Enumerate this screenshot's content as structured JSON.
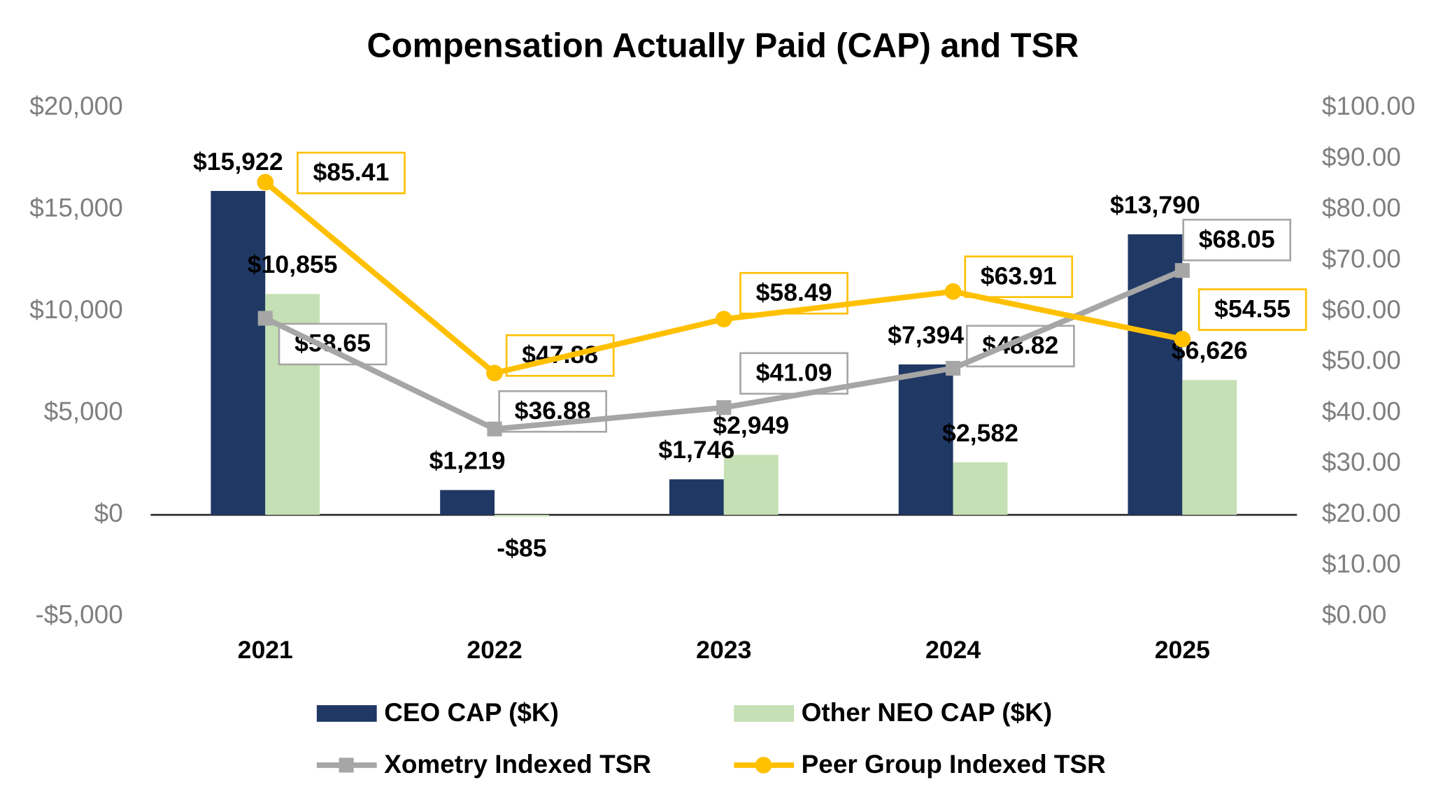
{
  "chart_data": {
    "type": "bar_line_combo",
    "title": "Compensation Actually Paid (CAP) and TSR",
    "categories": [
      "2021",
      "2022",
      "2023",
      "2024",
      "2025"
    ],
    "series": [
      {
        "name": "CEO CAP ($K)",
        "type": "bar",
        "color": "#1f3864",
        "values": [
          15922,
          1219,
          1746,
          7394,
          13790
        ],
        "value_labels": [
          "$15,922",
          "$1,219",
          "$1,746",
          "$7,394",
          "$13,790"
        ]
      },
      {
        "name": "Other NEO CAP ($K)",
        "type": "bar",
        "color": "#c5e0b4",
        "values": [
          10855,
          -85,
          2949,
          2582,
          6626
        ],
        "value_labels": [
          "$10,855",
          "-$85",
          "$2,949",
          "$2,582",
          "$6,626"
        ]
      },
      {
        "name": "Xometry Indexed TSR",
        "type": "line",
        "marker": "square",
        "axis": "y2",
        "color": "#a6a6a6",
        "values": [
          58.65,
          36.88,
          41.09,
          48.82,
          68.05
        ],
        "value_labels": [
          "$58.65",
          "$36.88",
          "$41.09",
          "$48.82",
          "$68.05"
        ]
      },
      {
        "name": "Peer Group Indexed TSR",
        "type": "line",
        "marker": "circle",
        "axis": "y2",
        "color": "#ffc000",
        "values": [
          85.41,
          47.88,
          58.49,
          63.91,
          54.55
        ],
        "value_labels": [
          "$85.41",
          "$47.88",
          "$58.49",
          "$63.91",
          "$54.55"
        ]
      }
    ],
    "ylim": [
      -5000,
      20000
    ],
    "yticks": [
      {
        "value": -5000,
        "label": "-$5,000"
      },
      {
        "value": 0,
        "label": "$0"
      },
      {
        "value": 5000,
        "label": "$5,000"
      },
      {
        "value": 10000,
        "label": "$10,000"
      },
      {
        "value": 15000,
        "label": "$15,000"
      },
      {
        "value": 20000,
        "label": "$20,000"
      }
    ],
    "y2lim": [
      0,
      100
    ],
    "y2ticks": [
      {
        "value": 0,
        "label": "$0.00"
      },
      {
        "value": 10,
        "label": "$10.00"
      },
      {
        "value": 20,
        "label": "$20.00"
      },
      {
        "value": 30,
        "label": "$30.00"
      },
      {
        "value": 40,
        "label": "$40.00"
      },
      {
        "value": 50,
        "label": "$50.00"
      },
      {
        "value": 60,
        "label": "$60.00"
      },
      {
        "value": 70,
        "label": "$70.00"
      },
      {
        "value": 80,
        "label": "$80.00"
      },
      {
        "value": 90,
        "label": "$90.00"
      },
      {
        "value": 100,
        "label": "$100.00"
      }
    ],
    "grid": false,
    "legend": "bottom"
  }
}
